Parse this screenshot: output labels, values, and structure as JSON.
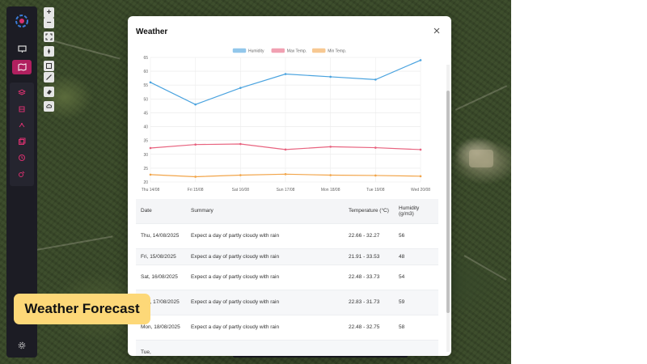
{
  "modal": {
    "title": "Weather"
  },
  "map_tools": {
    "zoom_in": "+",
    "zoom_out": "−"
  },
  "chart_data": {
    "type": "line",
    "categories": [
      "Thu 14/08",
      "Fri 15/08",
      "Sat 16/08",
      "Sun 17/08",
      "Mon 18/08",
      "Tue 19/08",
      "Wed 20/08"
    ],
    "series": [
      {
        "name": "Humidity",
        "color": "#4aa3df",
        "values": [
          56,
          48,
          54,
          59,
          58,
          57,
          64
        ]
      },
      {
        "name": "Max Temp.",
        "color": "#e8637f",
        "values": [
          32.27,
          33.53,
          33.73,
          31.73,
          32.75,
          32.4,
          31.7
        ]
      },
      {
        "name": "Min Temp.",
        "color": "#f2a54a",
        "values": [
          22.66,
          21.91,
          22.48,
          22.83,
          22.48,
          22.35,
          22.1
        ]
      }
    ],
    "yticks": [
      20,
      25,
      30,
      35,
      40,
      45,
      50,
      55,
      60,
      65
    ],
    "ylim": [
      20,
      65
    ],
    "legend": "top-center",
    "grid": true
  },
  "table": {
    "headers": [
      "Date",
      "Summary",
      "Temperature (°C)",
      "Humidity (g/m3)"
    ],
    "rows": [
      {
        "date": "Thu, 14/08/2025",
        "summary": "Expect a day of partly cloudy with rain",
        "temp": "22.66 - 32.27",
        "humidity": "56"
      },
      {
        "date": "Fri, 15/08/2025",
        "summary": "Expect a day of partly cloudy with rain",
        "temp": "21.91 - 33.53",
        "humidity": "48"
      },
      {
        "date": "Sat, 16/08/2025",
        "summary": "Expect a day of partly cloudy with rain",
        "temp": "22.48 - 33.73",
        "humidity": "54"
      },
      {
        "date": "Sun, 17/08/2025",
        "summary": "Expect a day of partly cloudy with rain",
        "temp": "22.83 - 31.73",
        "humidity": "59"
      },
      {
        "date": "Mon, 18/08/2025",
        "summary": "Expect a day of partly cloudy with rain",
        "temp": "22.48 - 32.75",
        "humidity": "58"
      },
      {
        "date": "Tue,",
        "summary": "",
        "temp": "",
        "humidity": ""
      }
    ]
  },
  "caption": {
    "text": "Weather Forecast"
  },
  "colors": {
    "accent": "#b1205f",
    "caption_bg": "#fdd878"
  }
}
